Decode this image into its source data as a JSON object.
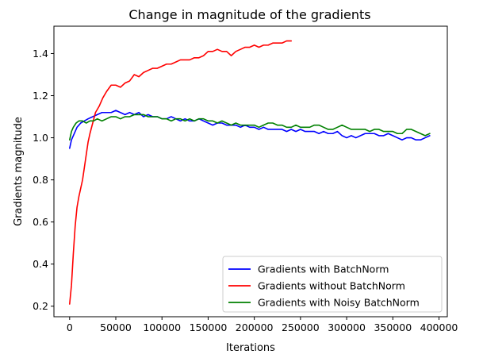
{
  "chart_data": {
    "type": "line",
    "title": "Change in magnitude of the gradients",
    "xlabel": "Iterations",
    "ylabel": "Gradients magnitude",
    "xlim": [
      -17000,
      409000
    ],
    "ylim": [
      0.15,
      1.53
    ],
    "xticks": [
      0,
      50000,
      100000,
      150000,
      200000,
      250000,
      300000,
      350000,
      400000
    ],
    "yticks": [
      0.2,
      0.4,
      0.6,
      0.8,
      1.0,
      1.2,
      1.4
    ],
    "xtick_labels": [
      "0",
      "50000",
      "100000",
      "150000",
      "200000",
      "250000",
      "300000",
      "350000",
      "400000"
    ],
    "ytick_labels": [
      "0.2",
      "0.4",
      "0.6",
      "0.8",
      "1.0",
      "1.2",
      "1.4"
    ],
    "grid": false,
    "legend_position": "lower-right",
    "series": [
      {
        "name": "Gradients with BatchNorm",
        "color": "#0000ff",
        "x": [
          0,
          2000,
          5000,
          8000,
          12000,
          16000,
          20000,
          25000,
          30000,
          35000,
          40000,
          45000,
          50000,
          55000,
          60000,
          65000,
          70000,
          75000,
          80000,
          85000,
          90000,
          95000,
          100000,
          105000,
          110000,
          115000,
          120000,
          125000,
          130000,
          135000,
          140000,
          145000,
          150000,
          155000,
          160000,
          165000,
          170000,
          175000,
          180000,
          185000,
          190000,
          195000,
          200000,
          205000,
          210000,
          215000,
          220000,
          225000,
          230000,
          235000,
          240000,
          245000,
          250000,
          255000,
          260000,
          265000,
          270000,
          275000,
          280000,
          285000,
          290000,
          295000,
          300000,
          305000,
          310000,
          315000,
          320000,
          325000,
          330000,
          335000,
          340000,
          345000,
          350000,
          355000,
          360000,
          365000,
          370000,
          375000,
          380000,
          385000,
          390000
        ],
        "y": [
          0.95,
          0.99,
          1.02,
          1.05,
          1.07,
          1.08,
          1.09,
          1.1,
          1.11,
          1.12,
          1.12,
          1.12,
          1.13,
          1.12,
          1.11,
          1.12,
          1.11,
          1.12,
          1.1,
          1.11,
          1.1,
          1.1,
          1.09,
          1.09,
          1.1,
          1.09,
          1.08,
          1.09,
          1.08,
          1.08,
          1.09,
          1.08,
          1.07,
          1.06,
          1.07,
          1.07,
          1.06,
          1.06,
          1.06,
          1.05,
          1.06,
          1.05,
          1.05,
          1.04,
          1.05,
          1.04,
          1.04,
          1.04,
          1.04,
          1.03,
          1.04,
          1.03,
          1.04,
          1.03,
          1.03,
          1.03,
          1.02,
          1.03,
          1.02,
          1.02,
          1.03,
          1.01,
          1.0,
          1.01,
          1.0,
          1.01,
          1.02,
          1.02,
          1.02,
          1.01,
          1.01,
          1.02,
          1.01,
          1.0,
          0.99,
          1.0,
          1.0,
          0.99,
          0.99,
          1.0,
          1.01
        ]
      },
      {
        "name": "Gradients without BatchNorm",
        "color": "#ff0000",
        "x": [
          0,
          2000,
          4000,
          6000,
          8000,
          10000,
          12000,
          14000,
          16000,
          18000,
          20000,
          22000,
          25000,
          28000,
          32000,
          36000,
          40000,
          45000,
          50000,
          55000,
          60000,
          65000,
          70000,
          75000,
          80000,
          85000,
          90000,
          95000,
          100000,
          105000,
          110000,
          115000,
          120000,
          125000,
          130000,
          135000,
          140000,
          145000,
          150000,
          155000,
          160000,
          165000,
          170000,
          175000,
          180000,
          185000,
          190000,
          195000,
          200000,
          205000,
          210000,
          215000,
          220000,
          225000,
          230000,
          235000,
          240000
        ],
        "y": [
          0.21,
          0.3,
          0.45,
          0.58,
          0.67,
          0.72,
          0.76,
          0.8,
          0.86,
          0.92,
          0.98,
          1.02,
          1.07,
          1.12,
          1.15,
          1.19,
          1.22,
          1.25,
          1.25,
          1.24,
          1.26,
          1.27,
          1.3,
          1.29,
          1.31,
          1.32,
          1.33,
          1.33,
          1.34,
          1.35,
          1.35,
          1.36,
          1.37,
          1.37,
          1.37,
          1.38,
          1.38,
          1.39,
          1.41,
          1.41,
          1.42,
          1.41,
          1.41,
          1.39,
          1.41,
          1.42,
          1.43,
          1.43,
          1.44,
          1.43,
          1.44,
          1.44,
          1.45,
          1.45,
          1.45,
          1.46,
          1.46
        ]
      },
      {
        "name": "Gradients with Noisy BatchNorm",
        "color": "#008000",
        "x": [
          0,
          2000,
          4000,
          7000,
          10000,
          14000,
          18000,
          22000,
          26000,
          30000,
          35000,
          40000,
          45000,
          50000,
          55000,
          60000,
          65000,
          70000,
          75000,
          80000,
          85000,
          90000,
          95000,
          100000,
          105000,
          110000,
          115000,
          120000,
          125000,
          130000,
          135000,
          140000,
          145000,
          150000,
          155000,
          160000,
          165000,
          170000,
          175000,
          180000,
          185000,
          190000,
          195000,
          200000,
          205000,
          210000,
          215000,
          220000,
          225000,
          230000,
          235000,
          240000,
          245000,
          250000,
          255000,
          260000,
          265000,
          270000,
          275000,
          280000,
          285000,
          290000,
          295000,
          300000,
          305000,
          310000,
          315000,
          320000,
          325000,
          330000,
          335000,
          340000,
          345000,
          350000,
          355000,
          360000,
          365000,
          370000,
          375000,
          380000,
          385000,
          390000
        ],
        "y": [
          0.99,
          1.03,
          1.05,
          1.07,
          1.08,
          1.08,
          1.07,
          1.08,
          1.08,
          1.09,
          1.08,
          1.09,
          1.1,
          1.1,
          1.09,
          1.1,
          1.1,
          1.11,
          1.11,
          1.11,
          1.1,
          1.1,
          1.1,
          1.09,
          1.09,
          1.08,
          1.09,
          1.09,
          1.08,
          1.09,
          1.08,
          1.09,
          1.09,
          1.08,
          1.08,
          1.07,
          1.08,
          1.07,
          1.06,
          1.07,
          1.06,
          1.06,
          1.06,
          1.06,
          1.05,
          1.06,
          1.07,
          1.07,
          1.06,
          1.06,
          1.05,
          1.05,
          1.06,
          1.05,
          1.05,
          1.05,
          1.06,
          1.06,
          1.05,
          1.04,
          1.04,
          1.05,
          1.06,
          1.05,
          1.04,
          1.04,
          1.04,
          1.04,
          1.03,
          1.04,
          1.04,
          1.03,
          1.03,
          1.03,
          1.02,
          1.02,
          1.04,
          1.04,
          1.03,
          1.02,
          1.01,
          1.02
        ]
      }
    ]
  }
}
